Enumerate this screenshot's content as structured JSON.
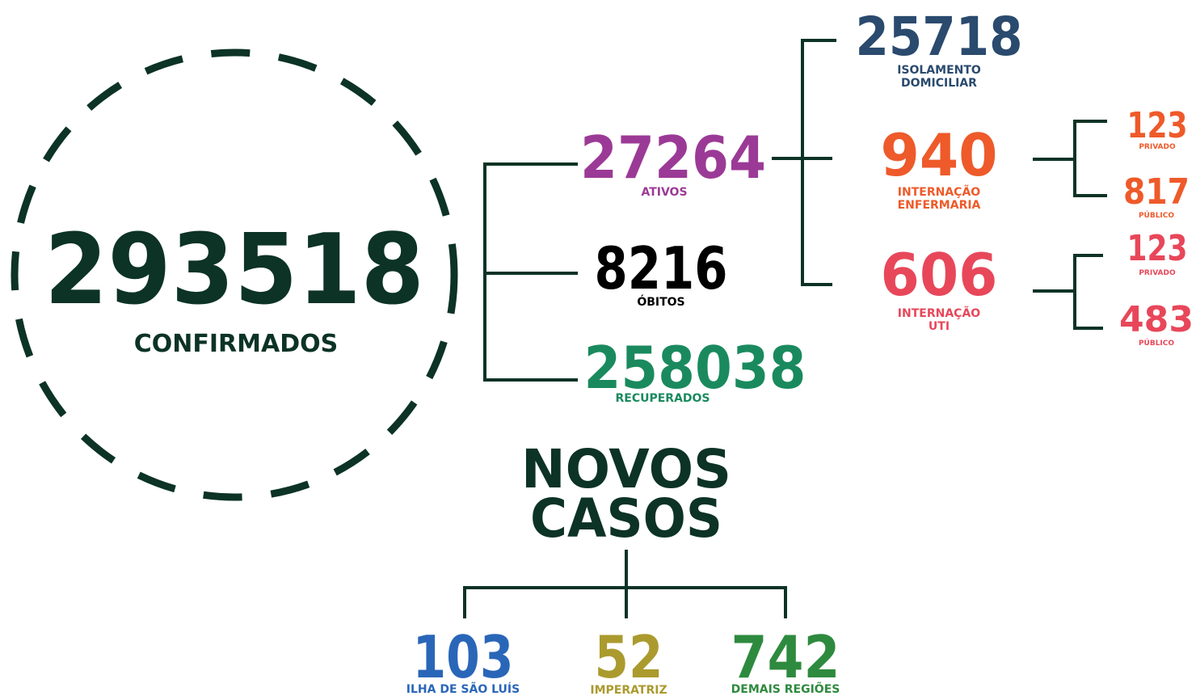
{
  "confirmados": {
    "value": 293518,
    "label": "CONFIRMADOS"
  },
  "ativos": {
    "value": 27264,
    "label": "ATIVOS"
  },
  "obitos": {
    "value": 8216,
    "label": "ÓBITOS"
  },
  "recuperados": {
    "value": 258038,
    "label": "RECUPERADOS"
  },
  "isolamento": {
    "value": 25718,
    "label": [
      "ISOLAMENTO",
      "DOMICILIAR"
    ]
  },
  "enfermaria": {
    "value": 940,
    "label": [
      "INTERNAÇÃO",
      "ENFERMARIA"
    ],
    "privado": {
      "value": 123,
      "label": "PRIVADO"
    },
    "publico": {
      "value": 817,
      "label": "PÚBLICO"
    }
  },
  "uti": {
    "value": 606,
    "label": [
      "INTERNAÇÃO",
      "UTI"
    ],
    "privado": {
      "value": 123,
      "label": "PRIVADO"
    },
    "publico": {
      "value": 483,
      "label": "PÚBLICO"
    }
  },
  "novos_casos": {
    "title": [
      "NOVOS",
      "CASOS"
    ],
    "regions": [
      {
        "value": 103,
        "label": "ILHA DE SÃO LUÍS"
      },
      {
        "value": 52,
        "label": "IMPERATRIZ"
      },
      {
        "value": 742,
        "label": "DEMAIS REGIÕES"
      }
    ]
  }
}
